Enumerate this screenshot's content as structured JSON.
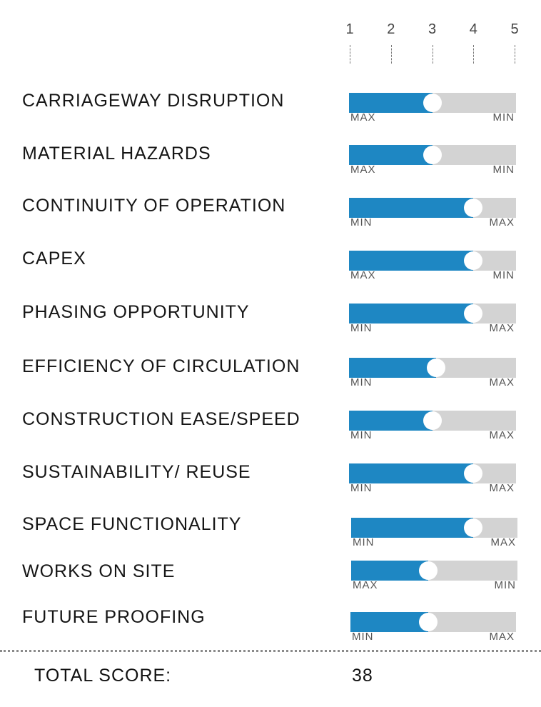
{
  "chart_data": {
    "type": "bar",
    "scale": [
      "1",
      "2",
      "3",
      "4",
      "5"
    ],
    "xlim": [
      1,
      5
    ],
    "fill_color": "#1e87c3",
    "track_color": "#d3d3d3",
    "rows": [
      {
        "label": "CARRIAGEWAY DISRUPTION",
        "value": 3.0,
        "left_end": "MAX",
        "right_end": "MIN"
      },
      {
        "label": "MATERIAL HAZARDS",
        "value": 3.0,
        "left_end": "MAX",
        "right_end": "MIN"
      },
      {
        "label": "CONTINUITY OF OPERATION",
        "value": 4.0,
        "left_end": "MIN",
        "right_end": "MAX"
      },
      {
        "label": "CAPEX",
        "value": 4.0,
        "left_end": "MAX",
        "right_end": "MIN"
      },
      {
        "label": "PHASING OPPORTUNITY",
        "value": 4.0,
        "left_end": "MIN",
        "right_end": "MAX"
      },
      {
        "label": "EFFICIENCY OF CIRCULATION",
        "value": 3.1,
        "left_end": "MIN",
        "right_end": "MAX"
      },
      {
        "label": "CONSTRUCTION EASE/SPEED",
        "value": 3.0,
        "left_end": "MIN",
        "right_end": "MAX"
      },
      {
        "label": "SUSTAINABILITY/ REUSE",
        "value": 4.0,
        "left_end": "MIN",
        "right_end": "MAX"
      },
      {
        "label": "SPACE FUNCTIONALITY",
        "value": 4.0,
        "left_end": "MIN",
        "right_end": "MAX"
      },
      {
        "label": "WORKS ON SITE",
        "value": 2.9,
        "left_end": "MAX",
        "right_end": "MIN"
      },
      {
        "label": "FUTURE PROOFING",
        "value": 2.9,
        "left_end": "MIN",
        "right_end": "MAX"
      }
    ],
    "total": {
      "label": "TOTAL SCORE:",
      "value": "38"
    }
  }
}
